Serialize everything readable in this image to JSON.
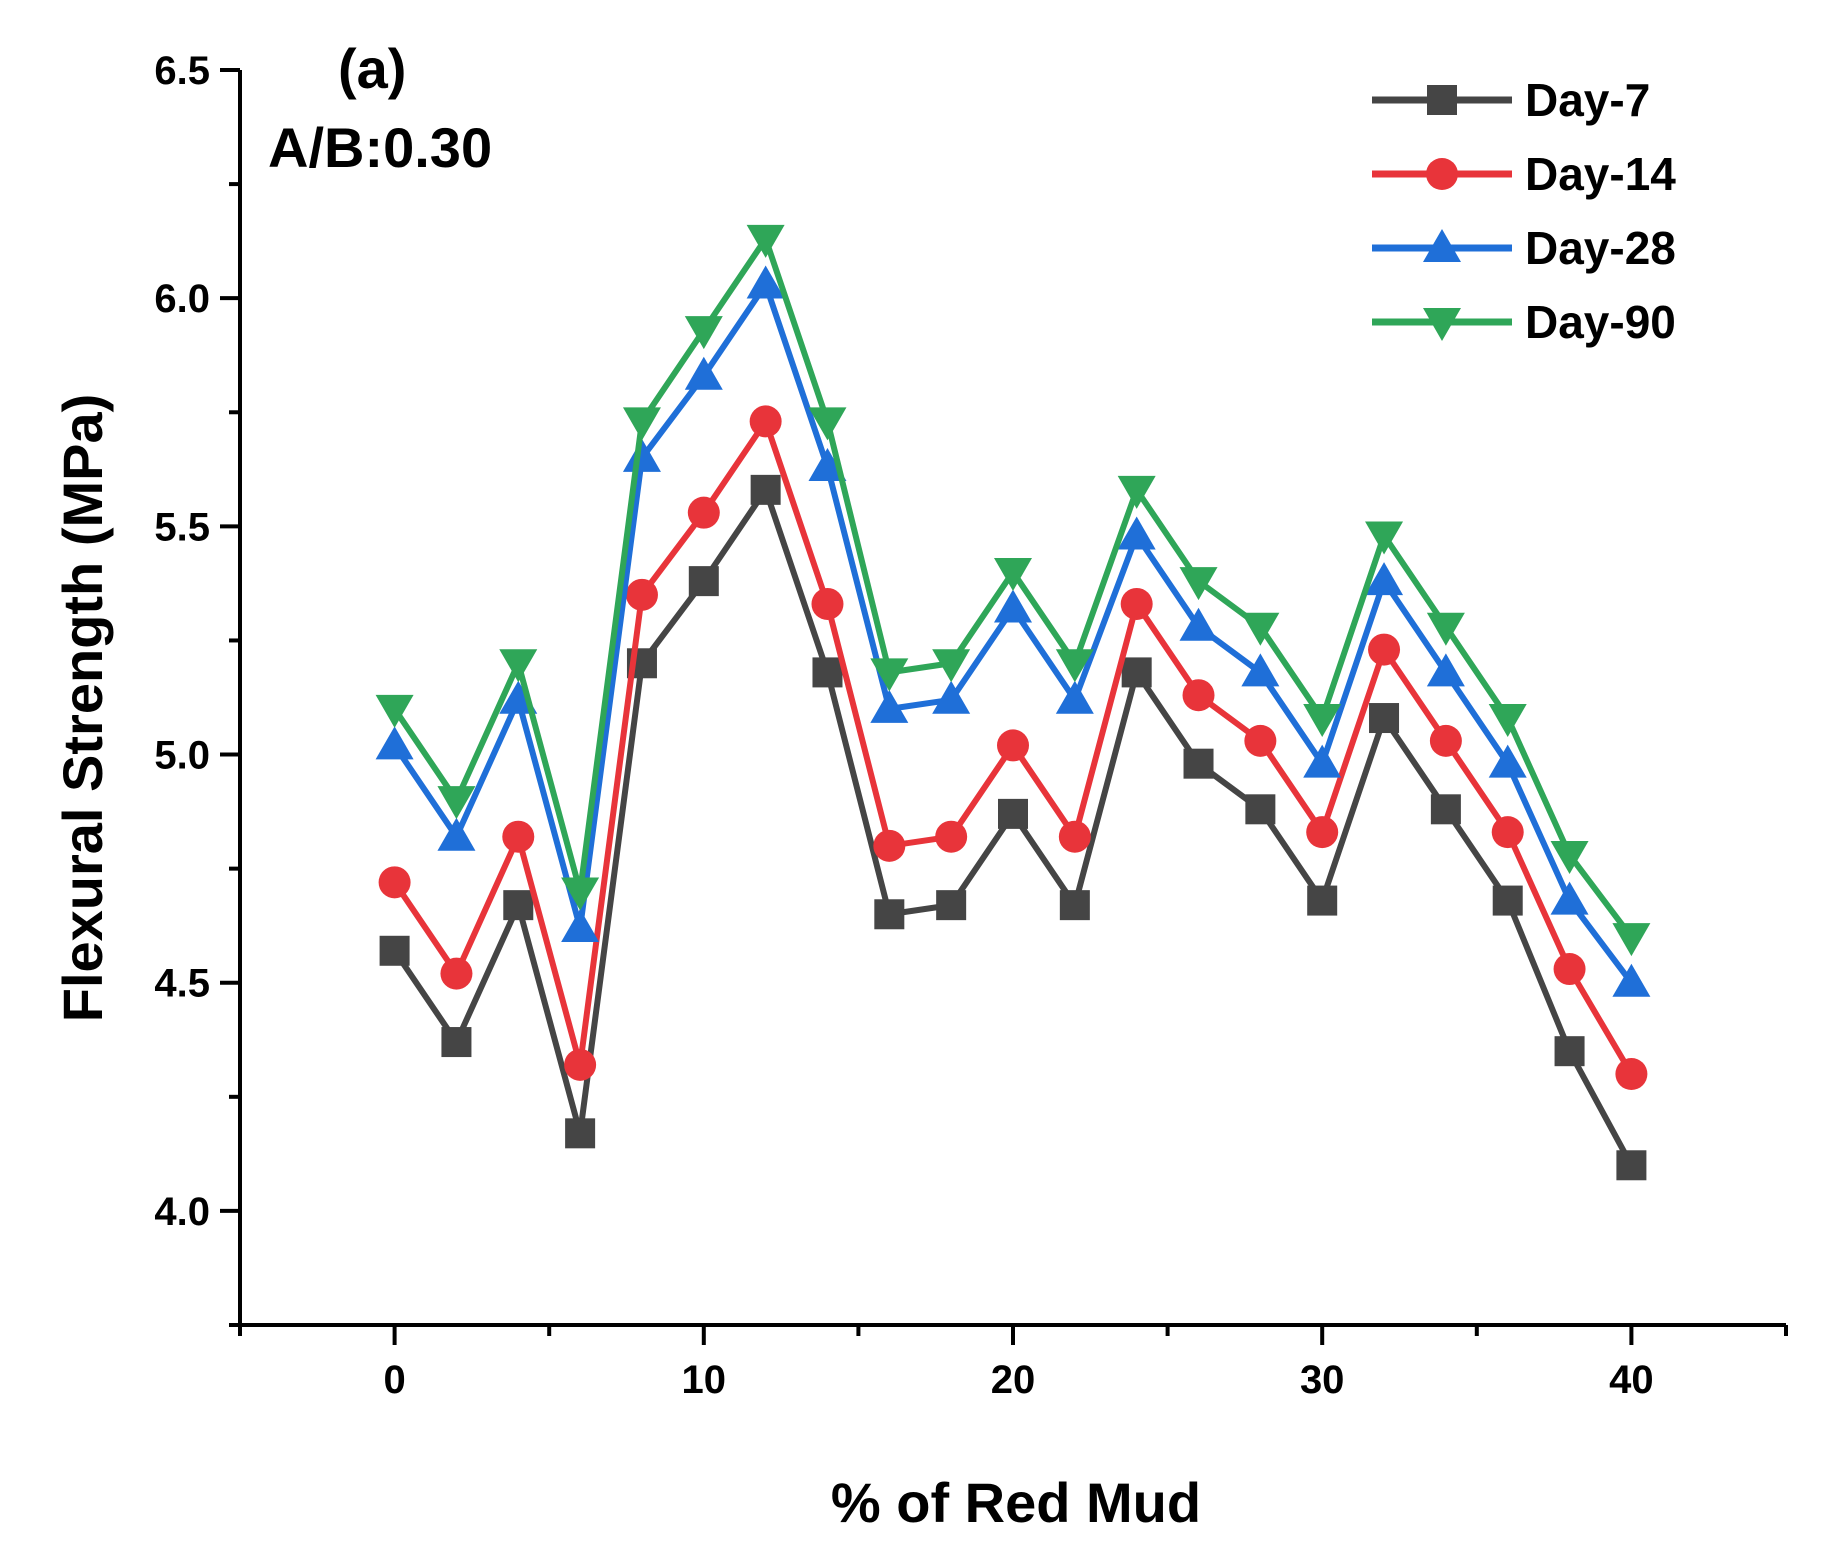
{
  "chart_data": {
    "type": "line",
    "panel_label": "(a)",
    "annotation": "A/B:0.30",
    "xlabel": "% of Red Mud",
    "ylabel": "Flexural  Strength (MPa)",
    "xlim": [
      -5,
      45
    ],
    "ylim": [
      3.75,
      6.5
    ],
    "xticks": [
      0,
      10,
      20,
      30,
      40
    ],
    "xtick_labels": [
      "0",
      "10",
      "20",
      "30",
      "40"
    ],
    "yticks": [
      4.0,
      4.5,
      5.0,
      5.5,
      6.0,
      6.5
    ],
    "ytick_labels": [
      "4.0",
      "4.5",
      "5.0",
      "5.5",
      "6.0",
      "6.5"
    ],
    "legend_position": "top-right",
    "x": [
      0,
      2,
      4,
      6,
      8,
      10,
      12,
      14,
      16,
      18,
      20,
      22,
      24,
      26,
      28,
      30,
      32,
      34,
      36,
      38,
      40
    ],
    "series": [
      {
        "name": "Day-7",
        "color": "#454545",
        "marker": "square",
        "values": [
          4.57,
          4.37,
          4.67,
          4.17,
          5.2,
          5.38,
          5.58,
          5.18,
          4.65,
          4.67,
          4.87,
          4.67,
          5.18,
          4.98,
          4.88,
          4.68,
          5.08,
          4.88,
          4.68,
          4.35,
          4.1
        ]
      },
      {
        "name": "Day-14",
        "color": "#e8343a",
        "marker": "circle",
        "values": [
          4.72,
          4.52,
          4.82,
          4.32,
          5.35,
          5.53,
          5.73,
          5.33,
          4.8,
          4.82,
          5.02,
          4.82,
          5.33,
          5.13,
          5.03,
          4.83,
          5.23,
          5.03,
          4.83,
          4.53,
          4.3
        ]
      },
      {
        "name": "Day-28",
        "color": "#1f6fd8",
        "marker": "triangle-up",
        "values": [
          5.02,
          4.82,
          5.12,
          4.62,
          5.65,
          5.83,
          6.03,
          5.63,
          5.1,
          5.12,
          5.32,
          5.12,
          5.48,
          5.28,
          5.18,
          4.98,
          5.38,
          5.18,
          4.98,
          4.68,
          4.5
        ]
      },
      {
        "name": "Day-90",
        "color": "#2fa658",
        "marker": "triangle-down",
        "values": [
          5.1,
          4.9,
          5.2,
          4.7,
          5.73,
          5.93,
          6.13,
          5.73,
          5.18,
          5.2,
          5.4,
          5.2,
          5.58,
          5.38,
          5.28,
          5.08,
          5.48,
          5.28,
          5.08,
          4.78,
          4.6
        ]
      }
    ]
  }
}
